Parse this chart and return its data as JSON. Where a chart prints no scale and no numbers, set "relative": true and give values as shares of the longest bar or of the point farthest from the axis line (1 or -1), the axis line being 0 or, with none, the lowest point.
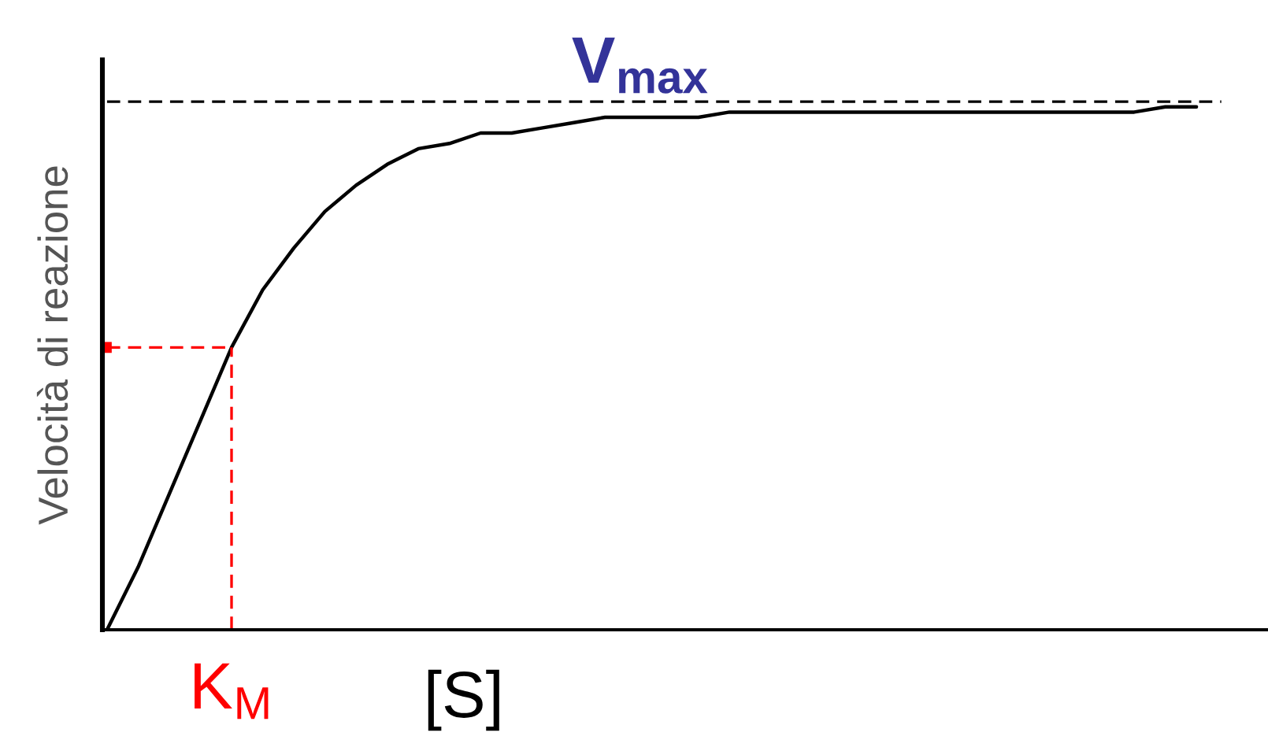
{
  "chart_data": {
    "type": "line",
    "relative": true,
    "xlabel": "[S]",
    "ylabel": "Velocità di reazione",
    "categories": [
      null,
      null,
      null,
      null,
      null,
      null,
      null,
      null,
      null,
      null,
      null,
      null,
      null,
      null,
      null,
      null,
      null,
      null,
      null,
      null,
      null,
      null,
      null,
      null,
      null,
      null,
      null,
      null,
      null,
      null,
      null,
      null,
      null,
      null,
      null,
      null
    ],
    "series": [
      {
        "color": "#000000",
        "values": [
          0,
          0.12,
          0.26,
          0.4,
          0.54,
          0.65,
          0.73,
          0.8,
          0.85,
          0.89,
          0.92,
          0.93,
          0.95,
          0.95,
          0.96,
          0.97,
          0.98,
          0.98,
          0.98,
          0.98,
          0.99,
          0.99,
          0.99,
          0.99,
          0.99,
          0.99,
          0.99,
          0.99,
          0.99,
          0.99,
          0.99,
          0.99,
          0.99,
          0.99,
          1.0,
          1.0
        ]
      }
    ],
    "ref_lines": [
      {
        "axis": "y",
        "value": 1.01,
        "label": "V$_{max}$",
        "color": "#000000",
        "line_style": "dashed"
      },
      {
        "axis": "y",
        "value": 0.54,
        "color": "#ff0000",
        "line_style": "dashed"
      }
    ],
    "annotations": [
      {
        "text": "K$_{M}$",
        "y": 0.54
      }
    ],
    "tick_labels": false,
    "marker": "none",
    "line_style": "solid"
  }
}
